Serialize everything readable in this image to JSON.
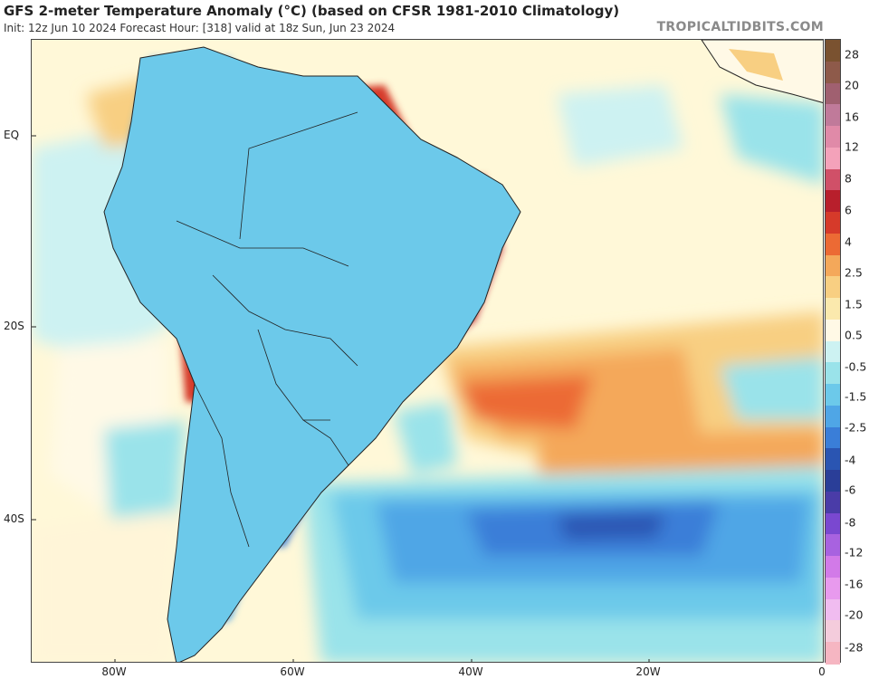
{
  "header": {
    "title": "GFS 2-meter Temperature Anomaly (°C) (based on CFSR 1981-2010 Climatology)",
    "subtitle": "Init: 12z Jun 10 2024   Forecast Hour: [318]   valid at 18z Sun, Jun 23 2024",
    "brand": "TROPICALTIDBITS.COM"
  },
  "axes": {
    "lat_labels": [
      "EQ",
      "20S",
      "40S"
    ],
    "lon_labels": [
      "80W",
      "60W",
      "40W",
      "20W",
      "0"
    ]
  },
  "colorbar": {
    "labels": [
      "28",
      "20",
      "16",
      "12",
      "8",
      "6",
      "4",
      "2.5",
      "1.5",
      "0.5",
      "-0.5",
      "-1.5",
      "-2.5",
      "-4",
      "-6",
      "-8",
      "-12",
      "-16",
      "-20",
      "-28"
    ],
    "colors": [
      "#7a5230",
      "#8e5a4a",
      "#a06070",
      "#c07a9a",
      "#e08aa8",
      "#f4a2ba",
      "#d05068",
      "#b81f2c",
      "#d63a2a",
      "#ec6a34",
      "#f4a85a",
      "#f8cf82",
      "#fbe9ad",
      "#fff9e6",
      "#cdf2f2",
      "#9ae3ea",
      "#6cc9ea",
      "#4fa6e6",
      "#3a7ed8",
      "#2a55b2",
      "#2a3e98",
      "#4a3ca8",
      "#7a48d0",
      "#a862e0",
      "#d27ae8",
      "#e89aee",
      "#f0bcf0",
      "#f4ccdc",
      "#f6b6c2"
    ]
  }
}
